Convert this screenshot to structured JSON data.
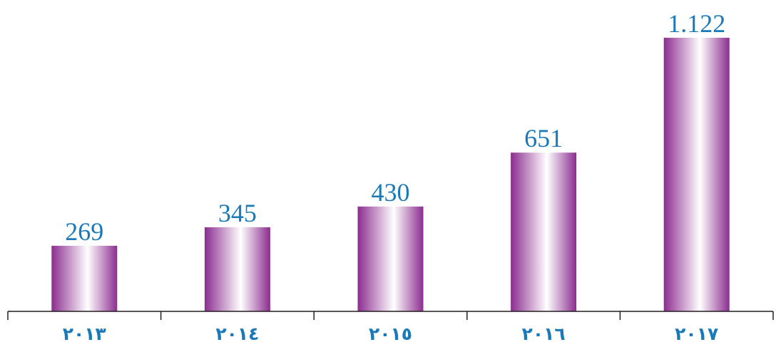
{
  "chart_data": {
    "type": "bar",
    "title": "",
    "xlabel": "",
    "ylabel": "",
    "categories": [
      "٢٠١٣",
      "٢٠١٤",
      "٢٠١٥",
      "٢٠١٦",
      "٢٠١٧"
    ],
    "values": [
      269,
      345,
      430,
      651,
      1122
    ],
    "value_labels": [
      "269",
      "345",
      "430",
      "651",
      "1.122"
    ],
    "ylim": [
      0,
      1122
    ],
    "grid": false,
    "legend": "none"
  },
  "colors": {
    "bar_edge": "#8b2d8f",
    "bar_highlight": "#ffffff",
    "label_text": "#1a7ab8",
    "axis": "#231f20"
  }
}
